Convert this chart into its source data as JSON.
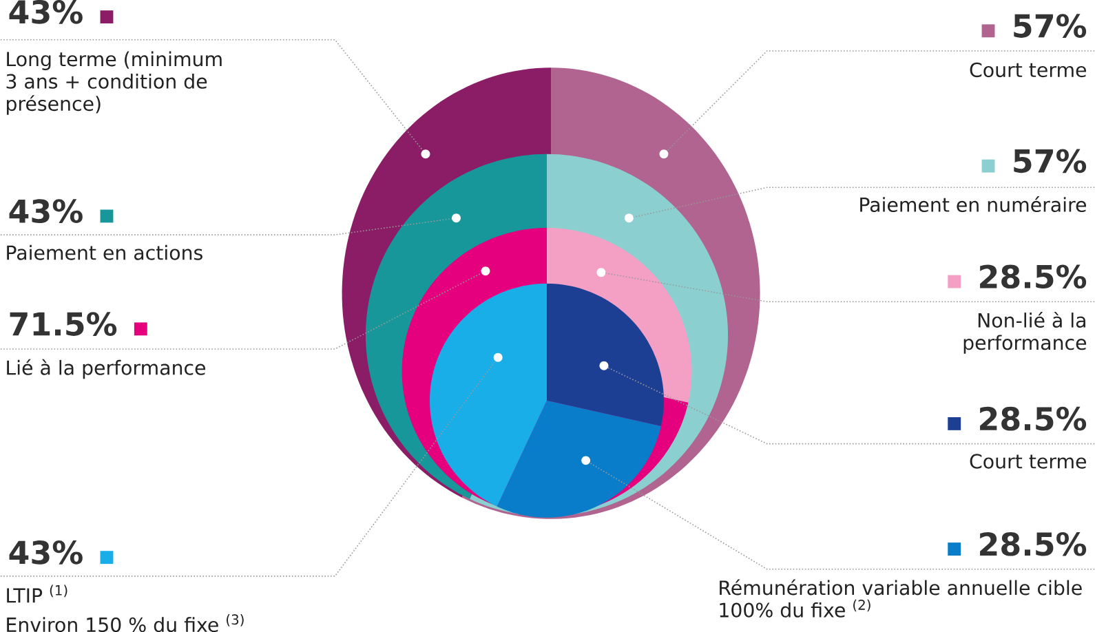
{
  "chart_data": [
    {
      "type": "other",
      "categories": [
        "Court terme",
        "Long terme (minimum 3 ans + condition de présence)"
      ],
      "values": [
        57,
        43
      ],
      "value_labels": [
        "57%",
        "43%"
      ],
      "colors": [
        "#b0648f",
        "#8b1c66"
      ]
    },
    {
      "type": "other",
      "categories": [
        "Paiement en numéraire",
        "Paiement en actions"
      ],
      "values": [
        57,
        43
      ],
      "value_labels": [
        "57%",
        "43%"
      ],
      "colors": [
        "#8ccfd0",
        "#17979a"
      ]
    },
    {
      "type": "other",
      "categories": [
        "Non-lié à la performance",
        "Lié à la performance"
      ],
      "values": [
        28.5,
        71.5
      ],
      "value_labels": [
        "28.5%",
        "71.5%"
      ],
      "colors": [
        "#f3a0c4",
        "#e5007e"
      ]
    },
    {
      "type": "other",
      "categories": [
        "Court terme",
        "Rémunération variable annuelle cible 100% du fixe $^{(2)}$",
        "LTIP $^{(1)}$"
      ],
      "values": [
        28.5,
        28.5,
        43
      ],
      "value_labels": [
        "28.5%",
        "28.5%",
        "43%"
      ],
      "colors": [
        "#1c3f94",
        "#0a7dca",
        "#19aee8"
      ],
      "annotations": [
        "Environ 150 % du fixe $^{(3)}$"
      ]
    }
  ]
}
